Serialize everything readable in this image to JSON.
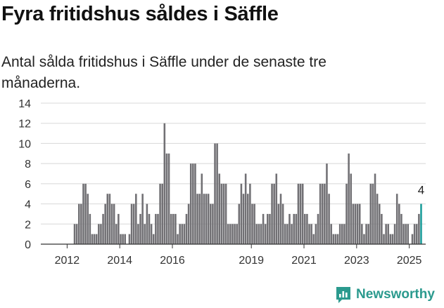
{
  "header": {
    "title": "Fyra fritidshus såldes i Säffle",
    "subtitle": "Antal sålda fritidshus i Säffle under de senaste tre månaderna."
  },
  "brand": {
    "name": "Newsworthy",
    "color": "#2b9a8e"
  },
  "colors": {
    "bar": "#717074",
    "highlight": "#1a9d9a",
    "grid": "#d8d8d8"
  },
  "chart_data": {
    "type": "bar",
    "title": "Fyra fritidshus såldes i Säffle",
    "xlabel": "",
    "ylabel": "",
    "ylim": [
      0,
      14
    ],
    "yticks": [
      0,
      2,
      4,
      6,
      8,
      10,
      12,
      14
    ],
    "xtick_labels": [
      "2012",
      "2014",
      "2016",
      "2019",
      "2021",
      "2023",
      "2025"
    ],
    "xtick_years": [
      2012,
      2014,
      2016,
      2019,
      2021,
      2023,
      2025
    ],
    "x_start": "2011-01",
    "highlight_label": "4",
    "values": [
      0,
      0,
      0,
      0,
      0,
      0,
      0,
      0,
      0,
      0,
      0,
      0,
      0,
      0,
      0,
      2,
      2,
      4,
      4,
      6,
      6,
      5,
      3,
      1,
      1,
      1,
      2,
      2,
      3,
      4,
      5,
      5,
      4,
      4,
      2,
      3,
      1,
      1,
      1,
      0,
      1,
      4,
      4,
      5,
      2,
      3,
      5,
      2,
      4,
      3,
      2,
      1,
      3,
      3,
      6,
      6,
      12,
      9,
      9,
      3,
      3,
      3,
      1,
      2,
      2,
      2,
      3,
      4,
      8,
      8,
      8,
      5,
      5,
      7,
      5,
      5,
      5,
      4,
      4,
      10,
      10,
      7,
      6,
      6,
      6,
      2,
      2,
      2,
      2,
      2,
      4,
      6,
      5,
      7,
      5,
      6,
      4,
      4,
      2,
      2,
      2,
      3,
      2,
      3,
      3,
      6,
      6,
      7,
      4,
      5,
      4,
      2,
      2,
      3,
      2,
      3,
      3,
      6,
      6,
      6,
      3,
      3,
      2,
      2,
      1,
      2,
      3,
      6,
      6,
      6,
      8,
      5,
      2,
      1,
      1,
      1,
      2,
      2,
      2,
      6,
      9,
      7,
      4,
      4,
      4,
      4,
      2,
      1,
      2,
      2,
      6,
      6,
      7,
      5,
      4,
      3,
      1,
      2,
      2,
      1,
      1,
      2,
      5,
      4,
      3,
      2,
      2,
      2,
      0,
      1,
      2,
      2,
      3,
      4
    ]
  }
}
